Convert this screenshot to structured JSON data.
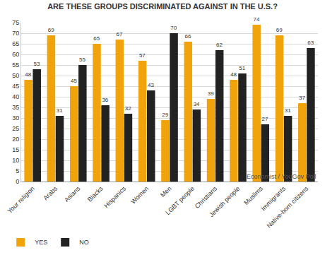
{
  "chart_data": {
    "type": "bar",
    "title": "ARE THESE GROUPS DISCRIMINATED AGAINST IN THE U.S.?",
    "categories": [
      "Your religion",
      "Arabs",
      "Asians",
      "Blacks",
      "Hispanics",
      "Women",
      "Men",
      "LGBT people",
      "Christians",
      "Jewish people",
      "Muslims",
      "Immigrants",
      "Native-born citizens"
    ],
    "series": [
      {
        "name": "YES",
        "color": "#f0a30a",
        "values": [
          48,
          69,
          45,
          65,
          67,
          57,
          29,
          66,
          39,
          48,
          74,
          69,
          37
        ]
      },
      {
        "name": "NO",
        "color": "#222222",
        "values": [
          53,
          31,
          55,
          36,
          32,
          43,
          70,
          34,
          62,
          51,
          27,
          31,
          63
        ]
      }
    ],
    "ylim": [
      0,
      75
    ],
    "yticks": [
      0,
      5,
      10,
      15,
      20,
      25,
      30,
      35,
      40,
      45,
      50,
      55,
      60,
      65,
      70,
      75
    ],
    "grid": true,
    "legend": "bottom left",
    "data_labels": true,
    "annotations": [
      "Economist / YouGov Poll"
    ]
  }
}
